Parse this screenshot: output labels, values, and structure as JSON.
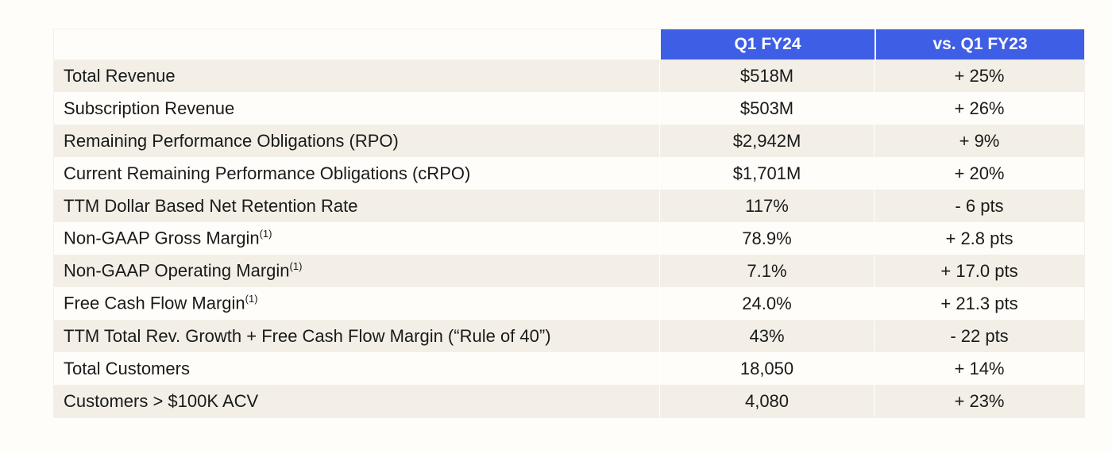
{
  "header": {
    "col_current": "Q1 FY24",
    "col_compare": "vs. Q1 FY23"
  },
  "rows": [
    {
      "metric": "Total Revenue",
      "note": "",
      "value": "$518M",
      "change": "+ 25%"
    },
    {
      "metric": "Subscription Revenue",
      "note": "",
      "value": "$503M",
      "change": "+ 26%"
    },
    {
      "metric": "Remaining Performance Obligations (RPO)",
      "note": "",
      "value": "$2,942M",
      "change": "+ 9%"
    },
    {
      "metric": "Current Remaining Performance Obligations (cRPO)",
      "note": "",
      "value": "$1,701M",
      "change": "+ 20%"
    },
    {
      "metric": "TTM Dollar Based Net Retention Rate",
      "note": "",
      "value": "117%",
      "change": "- 6 pts"
    },
    {
      "metric": "Non-GAAP Gross Margin",
      "note": "(1)",
      "value": "78.9%",
      "change": "+ 2.8 pts"
    },
    {
      "metric": "Non-GAAP Operating Margin",
      "note": "(1)",
      "value": "7.1%",
      "change": "+ 17.0 pts"
    },
    {
      "metric": "Free Cash Flow Margin",
      "note": "(1)",
      "value": "24.0%",
      "change": "+ 21.3 pts"
    },
    {
      "metric": "TTM Total Rev. Growth + Free Cash Flow Margin (“Rule of 40”)",
      "note": "",
      "value": "43%",
      "change": "- 22 pts"
    },
    {
      "metric": "Total Customers",
      "note": "",
      "value": "18,050",
      "change": "+ 14%"
    },
    {
      "metric": "Customers > $100K ACV",
      "note": "",
      "value": "4,080",
      "change": "+ 23%"
    }
  ]
}
